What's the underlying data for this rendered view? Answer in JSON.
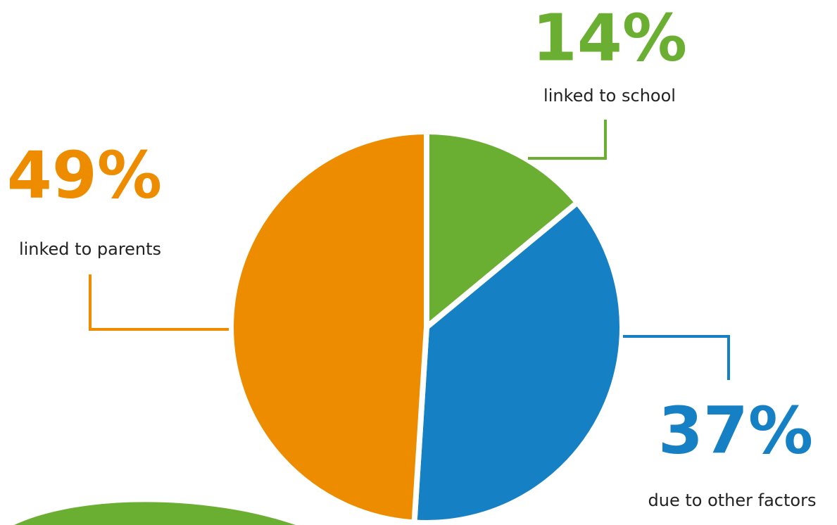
{
  "chart_data": {
    "type": "pie",
    "categories": [
      "linked to school",
      "due to other factors",
      "linked to parents"
    ],
    "values": [
      14,
      37,
      49
    ],
    "value_labels": [
      "14%",
      "37%",
      "49%"
    ],
    "colors": [
      "#6aaf31",
      "#1680c4",
      "#ee8c00"
    ]
  }
}
